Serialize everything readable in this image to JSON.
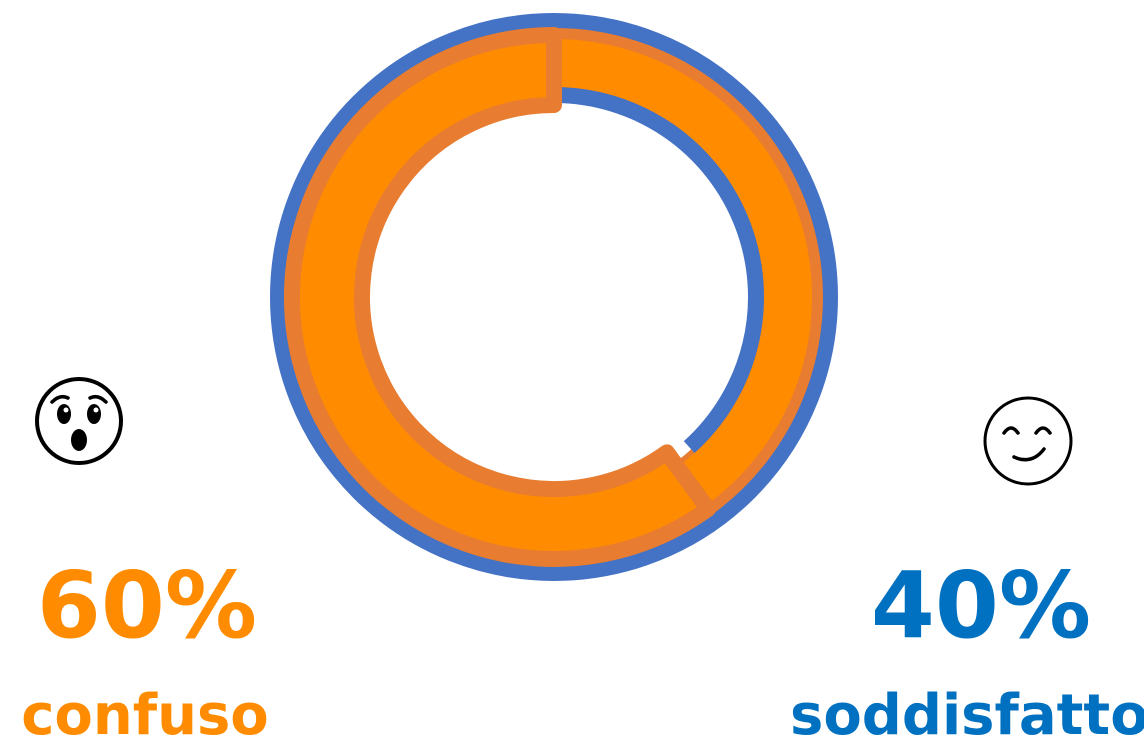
{
  "chart_data": {
    "type": "donut",
    "categories": [
      "confuso",
      "soddisfatto"
    ],
    "values": [
      60,
      40
    ],
    "slices": [
      {
        "label": "confuso",
        "value": 60,
        "display": "60%",
        "color": "#FF8C00",
        "border_color": "#E87C30",
        "icon": "surprised-face-icon"
      },
      {
        "label": "soddisfatto",
        "value": 40,
        "display": "40%",
        "color": "#4472C4",
        "text_color": "#0070C0",
        "icon": "smiling-face-icon"
      }
    ],
    "start_angle": "12 o'clock",
    "direction": "clockwise"
  }
}
